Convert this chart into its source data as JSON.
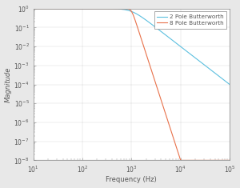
{
  "xlabel": "Frequency (Hz)",
  "ylabel": "Magnitude",
  "xlim_log": [
    1,
    5
  ],
  "ylim_log": [
    -8,
    0
  ],
  "fc": 1000,
  "poles_2": 2,
  "poles_8": 8,
  "color_2pole": "#5BBFDF",
  "color_8pole": "#E8714A",
  "legend_2pole": "2 Pole Butterworth",
  "legend_8pole": "8 Pole Butterworth",
  "bg_color": "#E8E8E8",
  "plot_bg_color": "#FFFFFF",
  "grid_color": "#AAAAAA",
  "tick_label_color": "#555555",
  "font_size": 6.0,
  "legend_font_size": 5.2,
  "line_width": 0.8
}
